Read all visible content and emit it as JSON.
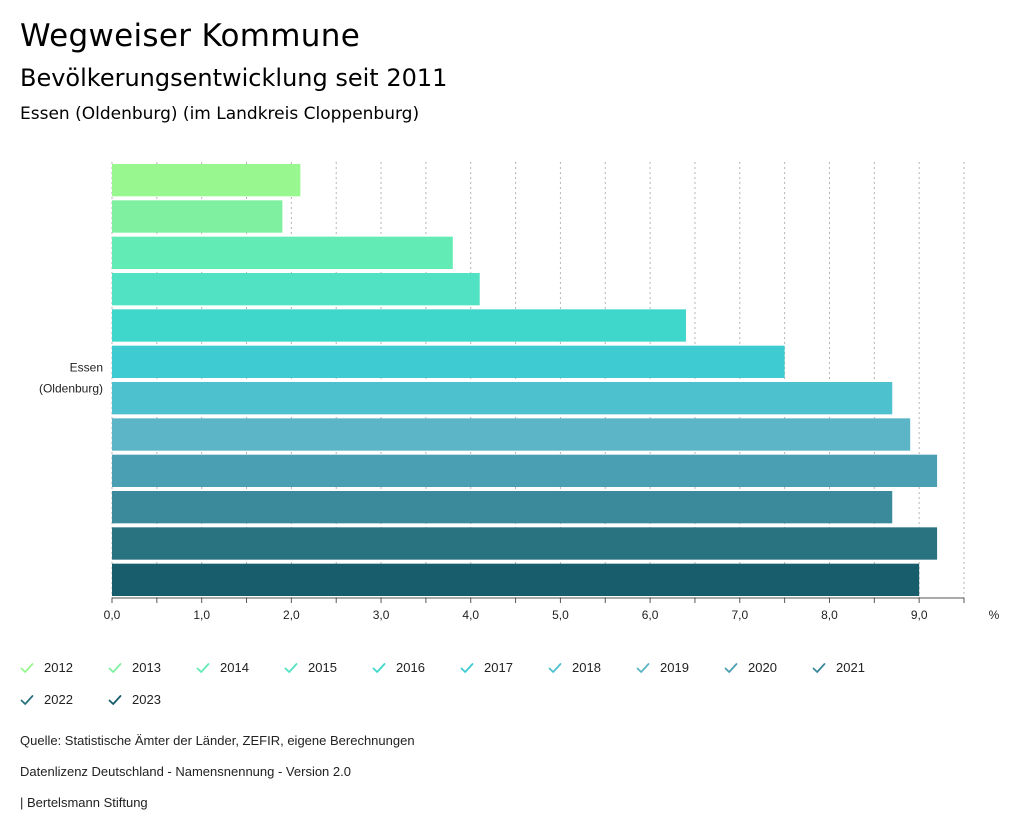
{
  "header": {
    "title": "Wegweiser Kommune",
    "subtitle": "Bevölkerungsentwicklung seit 2011",
    "region": "Essen (Oldenburg) (im Landkreis Cloppenburg)"
  },
  "chart_data": {
    "type": "bar",
    "orientation": "horizontal",
    "categories": [
      "Essen (Oldenburg)"
    ],
    "category_label_lines": [
      "Essen",
      "(Oldenburg)"
    ],
    "series": [
      {
        "name": "2012",
        "values": [
          2.1
        ],
        "color": "#98f78f"
      },
      {
        "name": "2013",
        "values": [
          1.9
        ],
        "color": "#7ef09f"
      },
      {
        "name": "2014",
        "values": [
          3.8
        ],
        "color": "#62ebb4"
      },
      {
        "name": "2015",
        "values": [
          4.1
        ],
        "color": "#50e2c2"
      },
      {
        "name": "2016",
        "values": [
          6.4
        ],
        "color": "#3fd6cb"
      },
      {
        "name": "2017",
        "values": [
          7.5
        ],
        "color": "#3ecbd1"
      },
      {
        "name": "2018",
        "values": [
          8.7
        ],
        "color": "#4ec1cf"
      },
      {
        "name": "2019",
        "values": [
          8.9
        ],
        "color": "#5bb5c7"
      },
      {
        "name": "2020",
        "values": [
          9.2
        ],
        "color": "#4a9fb3"
      },
      {
        "name": "2021",
        "values": [
          8.7
        ],
        "color": "#3b8a9c"
      },
      {
        "name": "2022",
        "values": [
          9.2
        ],
        "color": "#29727f"
      },
      {
        "name": "2023",
        "values": [
          9.0
        ],
        "color": "#175d6b"
      }
    ],
    "xlim": [
      0,
      9.5
    ],
    "x_ticks": [
      "0,0",
      "1,0",
      "2,0",
      "3,0",
      "4,0",
      "5,0",
      "6,0",
      "7,0",
      "8,0",
      "9,0"
    ],
    "x_tick_values": [
      0,
      1,
      2,
      3,
      4,
      5,
      6,
      7,
      8,
      9
    ],
    "unit": "%",
    "grid": true,
    "legend_position": "bottom"
  },
  "footer": {
    "source": "Quelle: Statistische Ämter der Länder, ZEFIR, eigene Berechnungen",
    "license": "Datenlizenz Deutschland - Namensnennung - Version 2.0",
    "publisher": "| Bertelsmann Stiftung"
  }
}
